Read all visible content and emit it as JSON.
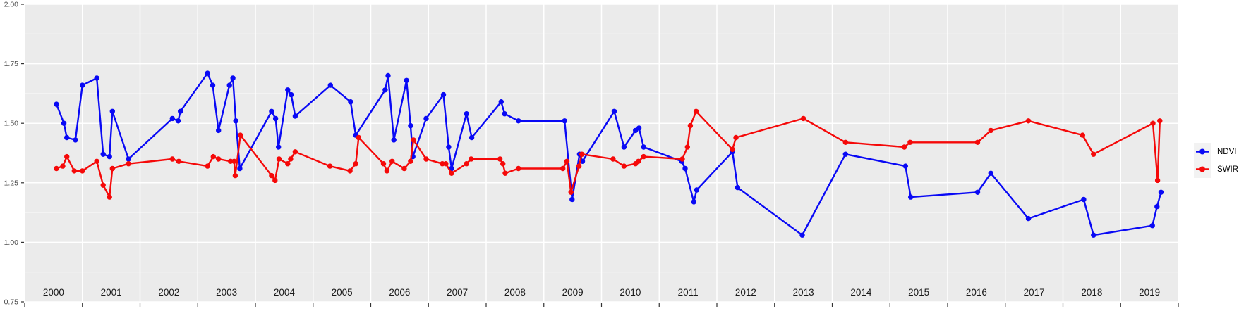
{
  "chart_data": {
    "type": "line",
    "title": "",
    "xlabel": "",
    "ylabel": "",
    "xlim": [
      2000,
      2020
    ],
    "ylim": [
      0.75,
      2.0
    ],
    "x_tick_labels": [
      "2000",
      "2001",
      "2002",
      "2003",
      "2004",
      "2005",
      "2006",
      "2007",
      "2008",
      "2009",
      "2010",
      "2011",
      "2012",
      "2013",
      "2014",
      "2015",
      "2016",
      "2017",
      "2018",
      "2019"
    ],
    "y_ticks": [
      0.75,
      1.0,
      1.25,
      1.5,
      1.75,
      2.0
    ],
    "y_tick_labels": [
      "0.75",
      "1.00",
      "1.25",
      "1.50",
      "1.75",
      "2.00"
    ],
    "y_minor_ticks": [
      0.875,
      1.125,
      1.375,
      1.625,
      1.875
    ],
    "grid": "white major and minor gridlines on gray panel",
    "legend_position": "right",
    "panel_bg": "#EBEBEB",
    "legend_key_bg": "#F2F2F2",
    "axis_text_color": "#4D4D4D",
    "x_axis_text_color": "#1A1A1A",
    "series": [
      {
        "name": "NDVI",
        "color": "#0909F5",
        "points": [
          [
            2000.55,
            1.58
          ],
          [
            2000.68,
            1.5
          ],
          [
            2000.73,
            1.44
          ],
          [
            2000.88,
            1.43
          ],
          [
            2001.0,
            1.66
          ],
          [
            2001.25,
            1.69
          ],
          [
            2001.36,
            1.37
          ],
          [
            2001.47,
            1.36
          ],
          [
            2001.52,
            1.55
          ],
          [
            2001.8,
            1.35
          ],
          [
            2002.56,
            1.52
          ],
          [
            2002.66,
            1.51
          ],
          [
            2002.7,
            1.55
          ],
          [
            2003.17,
            1.71
          ],
          [
            2003.26,
            1.66
          ],
          [
            2003.36,
            1.47
          ],
          [
            2003.55,
            1.66
          ],
          [
            2003.61,
            1.69
          ],
          [
            2003.66,
            1.51
          ],
          [
            2003.73,
            1.31
          ],
          [
            2004.28,
            1.55
          ],
          [
            2004.35,
            1.52
          ],
          [
            2004.4,
            1.4
          ],
          [
            2004.56,
            1.64
          ],
          [
            2004.62,
            1.62
          ],
          [
            2004.69,
            1.53
          ],
          [
            2005.3,
            1.66
          ],
          [
            2005.65,
            1.59
          ],
          [
            2005.74,
            1.45
          ],
          [
            2006.25,
            1.64
          ],
          [
            2006.3,
            1.7
          ],
          [
            2006.4,
            1.43
          ],
          [
            2006.62,
            1.68
          ],
          [
            2006.69,
            1.49
          ],
          [
            2006.73,
            1.36
          ],
          [
            2006.96,
            1.52
          ],
          [
            2007.26,
            1.62
          ],
          [
            2007.35,
            1.4
          ],
          [
            2007.4,
            1.31
          ],
          [
            2007.66,
            1.54
          ],
          [
            2007.75,
            1.44
          ],
          [
            2008.26,
            1.59
          ],
          [
            2008.32,
            1.54
          ],
          [
            2008.56,
            1.51
          ],
          [
            2009.36,
            1.51
          ],
          [
            2009.49,
            1.18
          ],
          [
            2009.62,
            1.37
          ],
          [
            2009.67,
            1.34
          ],
          [
            2010.22,
            1.55
          ],
          [
            2010.39,
            1.4
          ],
          [
            2010.59,
            1.47
          ],
          [
            2010.65,
            1.48
          ],
          [
            2010.73,
            1.4
          ],
          [
            2011.39,
            1.34
          ],
          [
            2011.45,
            1.31
          ],
          [
            2011.6,
            1.17
          ],
          [
            2011.65,
            1.22
          ],
          [
            2012.27,
            1.38
          ],
          [
            2012.36,
            1.23
          ],
          [
            2013.48,
            1.03
          ],
          [
            2014.23,
            1.37
          ],
          [
            2015.27,
            1.32
          ],
          [
            2015.36,
            1.19
          ],
          [
            2016.52,
            1.21
          ],
          [
            2016.75,
            1.29
          ],
          [
            2017.4,
            1.1
          ],
          [
            2018.36,
            1.18
          ],
          [
            2018.53,
            1.03
          ],
          [
            2019.55,
            1.07
          ],
          [
            2019.63,
            1.15
          ],
          [
            2019.7,
            1.21
          ]
        ]
      },
      {
        "name": "SWIR",
        "color": "#F50909",
        "points": [
          [
            2000.55,
            1.31
          ],
          [
            2000.66,
            1.32
          ],
          [
            2000.73,
            1.36
          ],
          [
            2000.86,
            1.3
          ],
          [
            2001.0,
            1.3
          ],
          [
            2001.25,
            1.34
          ],
          [
            2001.36,
            1.24
          ],
          [
            2001.47,
            1.19
          ],
          [
            2001.52,
            1.31
          ],
          [
            2001.8,
            1.33
          ],
          [
            2002.56,
            1.35
          ],
          [
            2002.67,
            1.34
          ],
          [
            2003.17,
            1.32
          ],
          [
            2003.27,
            1.36
          ],
          [
            2003.36,
            1.35
          ],
          [
            2003.57,
            1.34
          ],
          [
            2003.63,
            1.34
          ],
          [
            2003.65,
            1.28
          ],
          [
            2003.74,
            1.45
          ],
          [
            2004.28,
            1.28
          ],
          [
            2004.34,
            1.26
          ],
          [
            2004.41,
            1.35
          ],
          [
            2004.56,
            1.33
          ],
          [
            2004.61,
            1.35
          ],
          [
            2004.69,
            1.38
          ],
          [
            2005.29,
            1.32
          ],
          [
            2005.64,
            1.3
          ],
          [
            2005.74,
            1.33
          ],
          [
            2005.79,
            1.44
          ],
          [
            2006.22,
            1.33
          ],
          [
            2006.28,
            1.3
          ],
          [
            2006.37,
            1.34
          ],
          [
            2006.58,
            1.31
          ],
          [
            2006.69,
            1.34
          ],
          [
            2006.74,
            1.43
          ],
          [
            2006.96,
            1.35
          ],
          [
            2007.24,
            1.33
          ],
          [
            2007.3,
            1.33
          ],
          [
            2007.4,
            1.29
          ],
          [
            2007.66,
            1.33
          ],
          [
            2007.74,
            1.35
          ],
          [
            2008.24,
            1.35
          ],
          [
            2008.29,
            1.33
          ],
          [
            2008.33,
            1.29
          ],
          [
            2008.56,
            1.31
          ],
          [
            2009.33,
            1.31
          ],
          [
            2009.4,
            1.34
          ],
          [
            2009.47,
            1.21
          ],
          [
            2009.61,
            1.32
          ],
          [
            2009.66,
            1.37
          ],
          [
            2010.2,
            1.35
          ],
          [
            2010.39,
            1.32
          ],
          [
            2010.59,
            1.33
          ],
          [
            2010.64,
            1.34
          ],
          [
            2010.73,
            1.36
          ],
          [
            2011.4,
            1.35
          ],
          [
            2011.49,
            1.4
          ],
          [
            2011.54,
            1.49
          ],
          [
            2011.64,
            1.55
          ],
          [
            2012.27,
            1.39
          ],
          [
            2012.33,
            1.44
          ],
          [
            2013.5,
            1.52
          ],
          [
            2014.23,
            1.42
          ],
          [
            2015.25,
            1.4
          ],
          [
            2015.35,
            1.42
          ],
          [
            2016.52,
            1.42
          ],
          [
            2016.75,
            1.47
          ],
          [
            2017.4,
            1.51
          ],
          [
            2018.34,
            1.45
          ],
          [
            2018.53,
            1.37
          ],
          [
            2019.56,
            1.5
          ],
          [
            2019.64,
            1.26
          ],
          [
            2019.68,
            1.51
          ]
        ]
      }
    ]
  }
}
